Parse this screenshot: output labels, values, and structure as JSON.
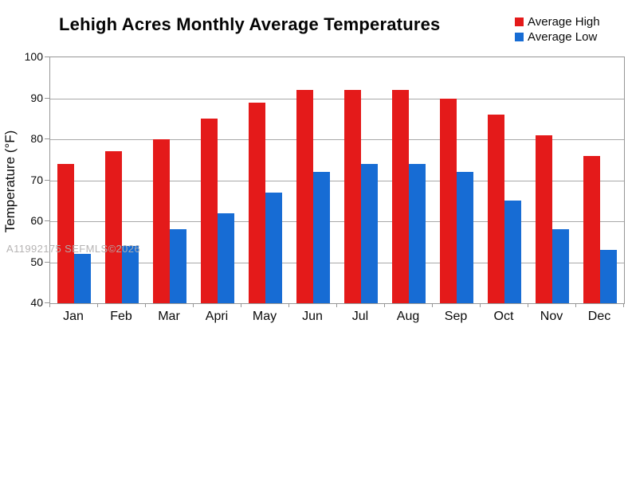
{
  "title": "Lehigh Acres Monthly Average Temperatures",
  "y_axis_title": "Temperature (°F)",
  "watermark": "A11992175 SEFMLS©2026",
  "chart_data": {
    "type": "bar",
    "title": "Lehigh Acres Monthly Average Temperatures",
    "categories": [
      "Jan",
      "Feb",
      "Mar",
      "Apri",
      "May",
      "Jun",
      "Jul",
      "Aug",
      "Sep",
      "Oct",
      "Nov",
      "Dec"
    ],
    "series": [
      {
        "name": "Average High",
        "color": "#e41a1a",
        "values": [
          74,
          77,
          80,
          85,
          89,
          92,
          92,
          92,
          90,
          86,
          81,
          76
        ]
      },
      {
        "name": "Average Low",
        "color": "#176cd4",
        "values": [
          52,
          54,
          58,
          62,
          67,
          72,
          74,
          74,
          72,
          65,
          58,
          53
        ]
      }
    ],
    "xlabel": "",
    "ylabel": "Temperature (°F)",
    "ylim": [
      40,
      100
    ],
    "yticks": [
      40,
      50,
      60,
      70,
      80,
      90,
      100
    ],
    "grid": true,
    "legend_position": "top-right"
  }
}
